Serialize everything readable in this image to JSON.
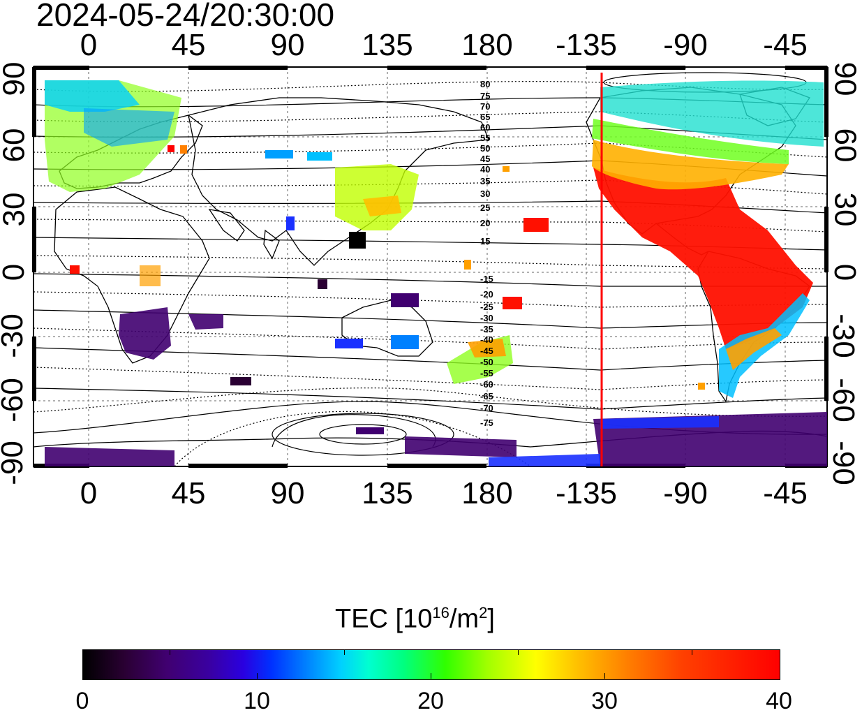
{
  "timestamp": "2024-05-24/20:30:00",
  "x_axis_top_labels": [
    "0",
    "45",
    "90",
    "135",
    "180",
    "-135",
    "-90",
    "-45"
  ],
  "x_axis_bottom_labels": [
    "0",
    "45",
    "90",
    "135",
    "180",
    "-135",
    "-90",
    "-45"
  ],
  "y_axis_labels": [
    "90",
    "60",
    "30",
    "0",
    "-30",
    "-60",
    "-90"
  ],
  "contour_labels_north": [
    "80",
    "75",
    "70",
    "65",
    "60",
    "55",
    "50",
    "45",
    "40",
    "35",
    "30",
    "25",
    "20",
    "15"
  ],
  "contour_labels_south": [
    "-15",
    "-20",
    "-25",
    "-30",
    "-35",
    "-40",
    "-45",
    "-50",
    "-55",
    "-60",
    "-65",
    "-70",
    "-75"
  ],
  "colorbar": {
    "title_prefix": "TEC  [10",
    "title_sup1": "16",
    "title_mid": "/m",
    "title_sup2": "2",
    "title_suffix": "]",
    "ticks": [
      "0",
      "10",
      "20",
      "30",
      "40"
    ],
    "min": 0,
    "max": 40
  },
  "terminator_longitude": -128,
  "colors": {
    "terminator": "#ff0000",
    "frame": "#000000"
  }
}
